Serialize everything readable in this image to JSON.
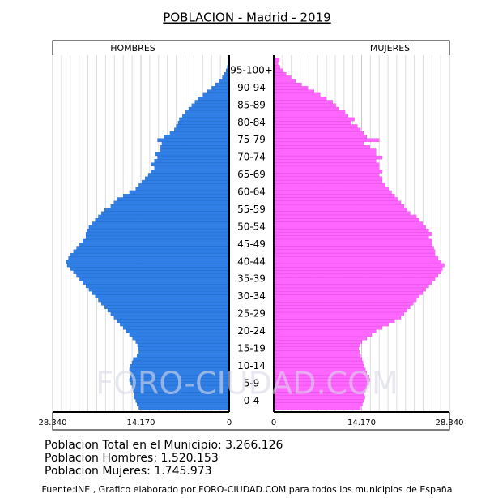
{
  "chart_data": {
    "type": "population-pyramid",
    "title": "POBLACION - Madrid - 2019",
    "watermark": "FORO-CIUDAD.COM",
    "categories": [
      null,
      null,
      "0-4",
      null,
      null,
      null,
      null,
      "5-9",
      null,
      null,
      null,
      null,
      "10-14",
      null,
      null,
      null,
      null,
      "15-19",
      null,
      null,
      null,
      null,
      "20-24",
      null,
      null,
      null,
      null,
      "25-29",
      null,
      null,
      null,
      null,
      "30-34",
      null,
      null,
      null,
      null,
      "35-39",
      null,
      null,
      null,
      null,
      "40-44",
      null,
      null,
      null,
      null,
      "45-49",
      null,
      null,
      null,
      null,
      "50-54",
      null,
      null,
      null,
      null,
      "55-59",
      null,
      null,
      null,
      null,
      "60-64",
      null,
      null,
      null,
      null,
      "65-69",
      null,
      null,
      null,
      null,
      "70-74",
      null,
      null,
      null,
      null,
      "75-79",
      null,
      null,
      null,
      null,
      "80-84",
      null,
      null,
      null,
      null,
      "85-89",
      null,
      null,
      null,
      null,
      "90-94",
      null,
      null,
      null,
      null,
      "95-100+",
      null,
      null,
      null
    ],
    "series": [
      {
        "name": "HOMBRES",
        "color": "#2f7fe6",
        "values": [
          14500,
          14800,
          15000,
          15300,
          15200,
          15400,
          15600,
          15800,
          16000,
          15900,
          15800,
          16000,
          15900,
          15600,
          15400,
          14800,
          14500,
          14600,
          14700,
          15000,
          15500,
          16000,
          16500,
          17000,
          17500,
          18000,
          18500,
          19000,
          19500,
          20000,
          20500,
          21000,
          21500,
          22000,
          22500,
          23000,
          23500,
          24000,
          24500,
          25000,
          25500,
          26000,
          26200,
          25800,
          25500,
          25000,
          24500,
          24000,
          23500,
          23000,
          23000,
          22800,
          22500,
          22000,
          21500,
          21000,
          20500,
          20000,
          19000,
          18500,
          18000,
          17000,
          16000,
          15000,
          14500,
          14000,
          13500,
          13000,
          12500,
          12000,
          12500,
          12000,
          11500,
          11800,
          11000,
          11000,
          10800,
          11500,
          10500,
          9500,
          8800,
          8500,
          8200,
          8000,
          7500,
          7000,
          6500,
          6000,
          5500,
          5000,
          4200,
          3500,
          2800,
          2200,
          1600,
          1100,
          800,
          500,
          300,
          200,
          150
        ]
      },
      {
        "name": "MUJERES",
        "color": "#ff66ff",
        "values": [
          14000,
          14300,
          14500,
          14700,
          14600,
          14800,
          15000,
          15300,
          15500,
          15400,
          15000,
          14800,
          14600,
          14400,
          14200,
          14000,
          13800,
          13700,
          13900,
          14200,
          15000,
          15800,
          16500,
          17500,
          18500,
          19500,
          20500,
          21000,
          21500,
          22000,
          22500,
          23000,
          23500,
          24000,
          24500,
          25000,
          25500,
          26000,
          26500,
          27000,
          27200,
          27500,
          27000,
          26500,
          26000,
          26000,
          25800,
          25500,
          25500,
          25000,
          25500,
          25000,
          24500,
          24000,
          23500,
          23000,
          22000,
          21500,
          21000,
          20500,
          20000,
          19500,
          19000,
          18500,
          18000,
          17500,
          17500,
          17000,
          17500,
          17000,
          17000,
          16500,
          17500,
          16500,
          16500,
          15500,
          14500,
          17000,
          15000,
          14500,
          14000,
          13500,
          12500,
          13000,
          12000,
          11500,
          10500,
          10000,
          9500,
          8500,
          7500,
          6500,
          5500,
          4500,
          3500,
          2800,
          2000,
          1500,
          1000,
          700,
          900
        ]
      }
    ],
    "xlim": [
      0,
      28340
    ],
    "xticks": [
      {
        "value": 28340,
        "label": "28.340"
      },
      {
        "value": 14170,
        "label": "14.170"
      },
      0
    ],
    "grid": true,
    "summary": [
      "Poblacion Total en el Municipio: 3.266.126",
      "Poblacion Hombres: 1.520.153",
      "Poblacion Mujeres: 1.745.973"
    ],
    "source": "Fuente:INE , Grafico elaborado por FORO-CIUDAD.COM para todos los municipios de España"
  }
}
